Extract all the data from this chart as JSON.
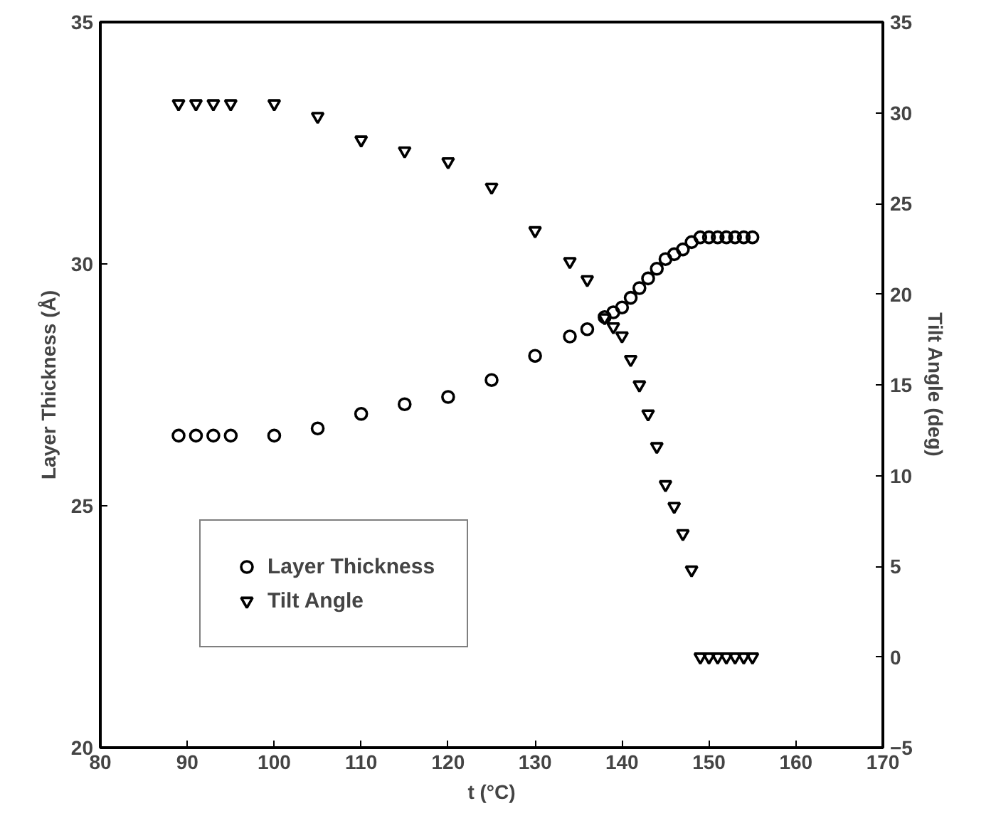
{
  "chart_data": {
    "type": "scatter",
    "xlabel": "t (°C)",
    "ylabel": "Layer Thickness (Å)",
    "y2label": "Tilt Angle (deg)",
    "xlim": [
      80,
      170
    ],
    "xticks": [
      80,
      90,
      100,
      110,
      120,
      130,
      140,
      150,
      160,
      170
    ],
    "ylim": [
      20,
      35
    ],
    "yticks": [
      20,
      25,
      30,
      35
    ],
    "y2lim": [
      -5,
      35
    ],
    "y2ticks": [
      -5,
      0,
      5,
      10,
      15,
      20,
      25,
      30,
      35
    ],
    "grid": false,
    "legend": "bottom left",
    "series": [
      {
        "name": "Layer Thickness",
        "color": "#000000",
        "marker": "circle",
        "x": [
          89,
          91,
          93,
          95,
          100,
          105,
          110,
          115,
          120,
          125,
          130,
          134,
          136,
          138,
          139,
          140,
          141,
          142,
          143,
          144,
          145,
          146,
          147,
          148,
          149,
          150,
          151,
          152,
          153,
          154,
          155
        ],
        "values": [
          26.45,
          26.45,
          26.45,
          26.45,
          26.45,
          26.6,
          26.9,
          27.1,
          27.25,
          27.6,
          28.1,
          28.5,
          28.65,
          28.9,
          29.0,
          29.1,
          29.3,
          29.5,
          29.7,
          29.9,
          30.1,
          30.2,
          30.3,
          30.45,
          30.55,
          30.55,
          30.55,
          30.55,
          30.55,
          30.55,
          30.55
        ]
      },
      {
        "name": "Tilt Angle",
        "color": "#000000",
        "marker": "triangle",
        "axis": "y2",
        "x": [
          89,
          91,
          93,
          95,
          100,
          105,
          110,
          115,
          120,
          125,
          130,
          134,
          136,
          138,
          139,
          140,
          141,
          142,
          143,
          144,
          145,
          146,
          147,
          148,
          149,
          150,
          151,
          152,
          153,
          154,
          155
        ],
        "values": [
          30.5,
          30.5,
          30.5,
          30.5,
          30.5,
          29.8,
          28.5,
          27.9,
          27.3,
          25.9,
          23.5,
          21.8,
          20.8,
          18.7,
          18.2,
          17.7,
          16.4,
          15.0,
          13.4,
          11.6,
          9.5,
          8.3,
          6.8,
          4.8,
          0,
          0,
          0,
          0,
          0,
          0,
          0
        ]
      }
    ]
  }
}
